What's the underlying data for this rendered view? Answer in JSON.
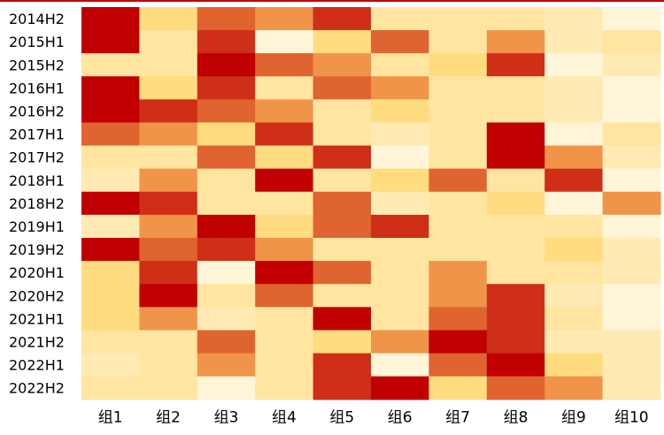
{
  "chart_data": {
    "type": "heatmap",
    "title": "",
    "xlabel": "",
    "ylabel": "",
    "columns": [
      "组1",
      "组2",
      "组3",
      "组4",
      "组5",
      "组6",
      "组7",
      "组8",
      "组9",
      "组10"
    ],
    "rows": [
      "2014H2",
      "2015H1",
      "2015H2",
      "2016H1",
      "2016H2",
      "2017H1",
      "2017H2",
      "2018H1",
      "2018H2",
      "2019H1",
      "2019H2",
      "2020H1",
      "2020H2",
      "2021H1",
      "2021H2",
      "2022H1",
      "2022H2"
    ],
    "values": [
      [
        10,
        4,
        7,
        6,
        9,
        3,
        3,
        2,
        1,
        0
      ],
      [
        10,
        2,
        9,
        0,
        4,
        7,
        3,
        6,
        1,
        3
      ],
      [
        3,
        2,
        10,
        7,
        6,
        3,
        4,
        9,
        0,
        1
      ],
      [
        10,
        4,
        9,
        3,
        7,
        6,
        2,
        2,
        1,
        0
      ],
      [
        10,
        9,
        7,
        6,
        3,
        4,
        3,
        2,
        1,
        0
      ],
      [
        7,
        6,
        4,
        9,
        3,
        1,
        2,
        10,
        0,
        3
      ],
      [
        2,
        3,
        7,
        4,
        9,
        0,
        3,
        10,
        6,
        1
      ],
      [
        1,
        6,
        2,
        10,
        3,
        4,
        7,
        3,
        9,
        0
      ],
      [
        10,
        9,
        2,
        3,
        7,
        1,
        3,
        4,
        0,
        6
      ],
      [
        1,
        6,
        10,
        4,
        7,
        9,
        3,
        2,
        2,
        0
      ],
      [
        10,
        7,
        9,
        6,
        3,
        2,
        2,
        2,
        4,
        1
      ],
      [
        4,
        9,
        0,
        10,
        7,
        2,
        6,
        3,
        2,
        1
      ],
      [
        4,
        10,
        3,
        7,
        3,
        2,
        6,
        9,
        1,
        0
      ],
      [
        4,
        6,
        1,
        2,
        10,
        2,
        7,
        9,
        3,
        0
      ],
      [
        3,
        2,
        7,
        2,
        4,
        6,
        10,
        9,
        1,
        1
      ],
      [
        1,
        3,
        6,
        3,
        9,
        0,
        7,
        10,
        4,
        1
      ],
      [
        2,
        3,
        0,
        3,
        9,
        10,
        4,
        7,
        6,
        1
      ]
    ],
    "value_range": [
      0,
      10
    ],
    "color_scale": [
      "#fff5d9",
      "#ffeab4",
      "#ffe5a0",
      "#ffdc80",
      "#f8c266",
      "#f0944a",
      "#e06430",
      "#cf2e17",
      "#c00000"
    ],
    "legend": "none"
  }
}
